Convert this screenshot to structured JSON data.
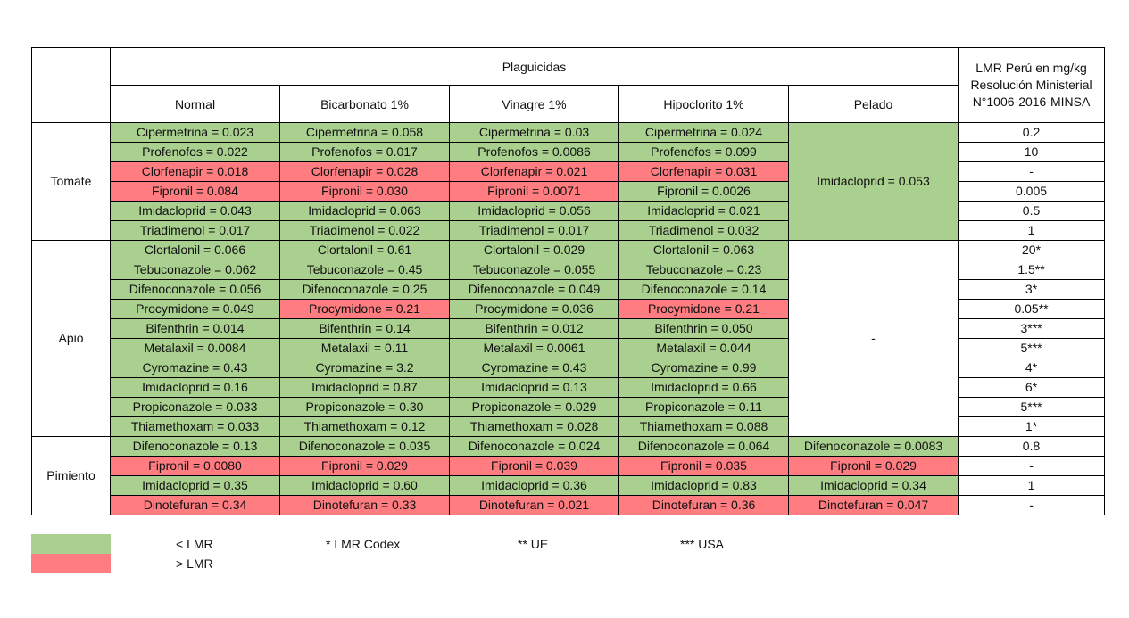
{
  "header": {
    "group_title": "Plaguicidas",
    "columns": [
      "Normal",
      "Bicarbonato 1%",
      "Vinagre 1%",
      "Hipoclorito 1%",
      "Pelado"
    ],
    "lmr_title_lines": [
      "LMR Perú en mg/kg",
      "Resolución Ministerial",
      "N°1006-2016-MINSA"
    ]
  },
  "colors": {
    "below_lmr": "#a9d08e",
    "above_lmr": "#ff7c80"
  },
  "groups": [
    {
      "crop": "Tomate",
      "rows": [
        {
          "cells": [
            {
              "t": "Cipermetrina = 0.023",
              "s": "g"
            },
            {
              "t": "Cipermetrina = 0.058",
              "s": "g"
            },
            {
              "t": "Cipermetrina = 0.03",
              "s": "g"
            },
            {
              "t": "Cipermetrina = 0.024",
              "s": "g"
            }
          ],
          "lmr": "0.2"
        },
        {
          "cells": [
            {
              "t": "Profenofos = 0.022",
              "s": "g"
            },
            {
              "t": "Profenofos = 0.017",
              "s": "g"
            },
            {
              "t": "Profenofos = 0.0086",
              "s": "g"
            },
            {
              "t": "Profenofos = 0.099",
              "s": "g"
            }
          ],
          "lmr": "10"
        },
        {
          "cells": [
            {
              "t": "Clorfenapir = 0.018",
              "s": "r"
            },
            {
              "t": "Clorfenapir = 0.028",
              "s": "r"
            },
            {
              "t": "Clorfenapir = 0.021",
              "s": "r"
            },
            {
              "t": "Clorfenapir = 0.031",
              "s": "r"
            }
          ],
          "lmr": "-"
        },
        {
          "cells": [
            {
              "t": "Fipronil = 0.084",
              "s": "r"
            },
            {
              "t": "Fipronil = 0.030",
              "s": "r"
            },
            {
              "t": "Fipronil = 0.0071",
              "s": "r"
            },
            {
              "t": "Fipronil = 0.0026",
              "s": "g"
            }
          ],
          "lmr": "0.005"
        },
        {
          "cells": [
            {
              "t": "Imidacloprid = 0.043",
              "s": "g"
            },
            {
              "t": "Imidacloprid = 0.063",
              "s": "g"
            },
            {
              "t": "Imidacloprid = 0.056",
              "s": "g"
            },
            {
              "t": "Imidacloprid = 0.021",
              "s": "g"
            }
          ],
          "lmr": "0.5"
        },
        {
          "cells": [
            {
              "t": "Triadimenol = 0.017",
              "s": "g"
            },
            {
              "t": "Triadimenol = 0.022",
              "s": "g"
            },
            {
              "t": "Triadimenol = 0.017",
              "s": "g"
            },
            {
              "t": "Triadimenol = 0.032",
              "s": "g"
            }
          ],
          "lmr": "1"
        }
      ],
      "pelado": {
        "t": "Imidacloprid = 0.053",
        "s": "g"
      }
    },
    {
      "crop": "Apio",
      "rows": [
        {
          "cells": [
            {
              "t": "Clortalonil = 0.066",
              "s": "g"
            },
            {
              "t": "Clortalonil = 0.61",
              "s": "g"
            },
            {
              "t": "Clortalonil = 0.029",
              "s": "g"
            },
            {
              "t": "Clortalonil = 0.063",
              "s": "g"
            }
          ],
          "lmr": "20*"
        },
        {
          "cells": [
            {
              "t": "Tebuconazole = 0.062",
              "s": "g"
            },
            {
              "t": "Tebuconazole = 0.45",
              "s": "g"
            },
            {
              "t": "Tebuconazole = 0.055",
              "s": "g"
            },
            {
              "t": "Tebuconazole = 0.23",
              "s": "g"
            }
          ],
          "lmr": "1.5**"
        },
        {
          "cells": [
            {
              "t": "Difenoconazole = 0.056",
              "s": "g"
            },
            {
              "t": "Difenoconazole = 0.25",
              "s": "g"
            },
            {
              "t": "Difenoconazole = 0.049",
              "s": "g"
            },
            {
              "t": "Difenoconazole = 0.14",
              "s": "g"
            }
          ],
          "lmr": "3*"
        },
        {
          "cells": [
            {
              "t": "Procymidone = 0.049",
              "s": "g"
            },
            {
              "t": "Procymidone = 0.21",
              "s": "r"
            },
            {
              "t": "Procymidone = 0.036",
              "s": "g"
            },
            {
              "t": "Procymidone = 0.21",
              "s": "r"
            }
          ],
          "lmr": "0.05**"
        },
        {
          "cells": [
            {
              "t": "Bifenthrin = 0.014",
              "s": "g"
            },
            {
              "t": "Bifenthrin = 0.14",
              "s": "g"
            },
            {
              "t": "Bifenthrin = 0.012",
              "s": "g"
            },
            {
              "t": "Bifenthrin = 0.050",
              "s": "g"
            }
          ],
          "lmr": "3***"
        },
        {
          "cells": [
            {
              "t": "Metalaxil = 0.0084",
              "s": "g"
            },
            {
              "t": "Metalaxil = 0.11",
              "s": "g"
            },
            {
              "t": "Metalaxil = 0.0061",
              "s": "g"
            },
            {
              "t": "Metalaxil = 0.044",
              "s": "g"
            }
          ],
          "lmr": "5***"
        },
        {
          "cells": [
            {
              "t": "Cyromazine = 0.43",
              "s": "g"
            },
            {
              "t": "Cyromazine = 3.2",
              "s": "g"
            },
            {
              "t": "Cyromazine = 0.43",
              "s": "g"
            },
            {
              "t": "Cyromazine = 0.99",
              "s": "g"
            }
          ],
          "lmr": "4*"
        },
        {
          "cells": [
            {
              "t": "Imidacloprid = 0.16",
              "s": "g"
            },
            {
              "t": "Imidacloprid = 0.87",
              "s": "g"
            },
            {
              "t": "Imidacloprid = 0.13",
              "s": "g"
            },
            {
              "t": "Imidacloprid = 0.66",
              "s": "g"
            }
          ],
          "lmr": "6*"
        },
        {
          "cells": [
            {
              "t": "Propiconazole = 0.033",
              "s": "g"
            },
            {
              "t": "Propiconazole = 0.30",
              "s": "g"
            },
            {
              "t": "Propiconazole = 0.029",
              "s": "g"
            },
            {
              "t": "Propiconazole = 0.11",
              "s": "g"
            }
          ],
          "lmr": "5***"
        },
        {
          "cells": [
            {
              "t": "Thiamethoxam = 0.033",
              "s": "g"
            },
            {
              "t": "Thiamethoxam = 0.12",
              "s": "g"
            },
            {
              "t": "Thiamethoxam = 0.028",
              "s": "g"
            },
            {
              "t": "Thiamethoxam = 0.088",
              "s": "g"
            }
          ],
          "lmr": "1*"
        }
      ],
      "pelado": {
        "t": "-",
        "s": "w"
      }
    },
    {
      "crop": "Pimiento",
      "rows": [
        {
          "cells": [
            {
              "t": "Difenoconazole = 0.13",
              "s": "g"
            },
            {
              "t": "Difenoconazole = 0.035",
              "s": "g"
            },
            {
              "t": "Difenoconazole = 0.024",
              "s": "g"
            },
            {
              "t": "Difenoconazole = 0.064",
              "s": "g"
            },
            {
              "t": "Difenoconazole = 0.0083",
              "s": "g"
            }
          ],
          "lmr": "0.8"
        },
        {
          "cells": [
            {
              "t": "Fipronil = 0.0080",
              "s": "r"
            },
            {
              "t": "Fipronil = 0.029",
              "s": "r"
            },
            {
              "t": "Fipronil = 0.039",
              "s": "r"
            },
            {
              "t": "Fipronil = 0.035",
              "s": "r"
            },
            {
              "t": "Fipronil = 0.029",
              "s": "r"
            }
          ],
          "lmr": "-"
        },
        {
          "cells": [
            {
              "t": "Imidacloprid = 0.35",
              "s": "g"
            },
            {
              "t": "Imidacloprid = 0.60",
              "s": "g"
            },
            {
              "t": "Imidacloprid = 0.36",
              "s": "g"
            },
            {
              "t": "Imidacloprid = 0.83",
              "s": "g"
            },
            {
              "t": "Imidacloprid = 0.34",
              "s": "g"
            }
          ],
          "lmr": "1"
        },
        {
          "cells": [
            {
              "t": "Dinotefuran = 0.34",
              "s": "r"
            },
            {
              "t": "Dinotefuran = 0.33",
              "s": "r"
            },
            {
              "t": "Dinotefuran = 0.021",
              "s": "r"
            },
            {
              "t": "Dinotefuran = 0.36",
              "s": "r"
            },
            {
              "t": "Dinotefuran = 0.047",
              "s": "r"
            }
          ],
          "lmr": "-"
        }
      ]
    }
  ],
  "legend": {
    "below": "< LMR",
    "above": "> LMR",
    "codex": "* LMR Codex",
    "ue": "** UE",
    "usa": "*** USA"
  }
}
